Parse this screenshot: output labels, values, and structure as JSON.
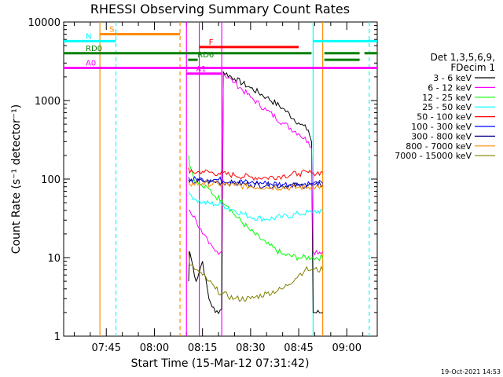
{
  "chart_data": {
    "type": "line",
    "title": "RHESSI Observing Summary Count Rates",
    "xlabel": "Start Time (15-Mar-12 07:31:42)",
    "ylabel": "Count Rate (s⁻¹ detector⁻¹)",
    "yscale": "log",
    "ylim": [
      1,
      10000
    ],
    "xlim": [
      "07:31:42",
      "09:09:30"
    ],
    "x_ticks": [
      "07:45",
      "08:00",
      "08:15",
      "08:30",
      "08:45",
      "09:00"
    ],
    "y_ticks": [
      "1",
      "10",
      "100",
      "1000",
      "10000"
    ],
    "timestamp": "19-Oct-2021 14:53",
    "legend": {
      "header": [
        "Det 1,3,5,6,9,",
        "FDecim 1"
      ],
      "position": "right"
    },
    "series": [
      {
        "name": "3 - 6 keV",
        "color": "#000000",
        "points": [
          [
            "08:10:40",
            5
          ],
          [
            "08:11:00",
            12
          ],
          [
            "08:13:00",
            5
          ],
          [
            "08:15:00",
            9
          ],
          [
            "08:17:00",
            3
          ],
          [
            "08:19:00",
            2
          ],
          [
            "08:21:00",
            2.2
          ],
          [
            "08:21:30",
            2300
          ],
          [
            "08:25:00",
            1900
          ],
          [
            "08:30:00",
            1450
          ],
          [
            "08:35:00",
            1100
          ],
          [
            "08:40:00",
            800
          ],
          [
            "08:45:00",
            520
          ],
          [
            "08:48:00",
            420
          ],
          [
            "08:49:00",
            300
          ],
          [
            "08:49:30",
            2
          ],
          [
            "08:52:30",
            2
          ]
        ]
      },
      {
        "name": "6 - 12 keV",
        "color": "#ff00ff",
        "points": [
          [
            "08:10:40",
            40
          ],
          [
            "08:11:00",
            40
          ],
          [
            "08:13:00",
            30
          ],
          [
            "08:15:00",
            20
          ],
          [
            "08:17:00",
            15
          ],
          [
            "08:19:00",
            12
          ],
          [
            "08:21:00",
            12
          ],
          [
            "08:21:30",
            2200
          ],
          [
            "08:25:00",
            1700
          ],
          [
            "08:30:00",
            1100
          ],
          [
            "08:35:00",
            750
          ],
          [
            "08:40:00",
            520
          ],
          [
            "08:45:00",
            380
          ],
          [
            "08:48:00",
            300
          ],
          [
            "08:49:00",
            250
          ],
          [
            "08:49:30",
            12
          ],
          [
            "08:52:30",
            12
          ]
        ]
      },
      {
        "name": "12 - 25 keV",
        "color": "#00ff00",
        "points": [
          [
            "08:10:40",
            200
          ],
          [
            "08:11:00",
            150
          ],
          [
            "08:13:00",
            90
          ],
          [
            "08:15:00",
            80
          ],
          [
            "08:17:00",
            75
          ],
          [
            "08:19:00",
            60
          ],
          [
            "08:21:00",
            55
          ],
          [
            "08:23:00",
            45
          ],
          [
            "08:25:00",
            35
          ],
          [
            "08:30:00",
            22
          ],
          [
            "08:35:00",
            15
          ],
          [
            "08:40:00",
            11
          ],
          [
            "08:45:00",
            10
          ],
          [
            "08:49:00",
            10
          ],
          [
            "08:49:30",
            10
          ],
          [
            "08:52:30",
            10
          ]
        ]
      },
      {
        "name": "25 - 50 keV",
        "color": "#00ffff",
        "points": [
          [
            "08:10:40",
            70
          ],
          [
            "08:11:00",
            65
          ],
          [
            "08:13:00",
            55
          ],
          [
            "08:15:00",
            50
          ],
          [
            "08:19:00",
            48
          ],
          [
            "08:21:00",
            47
          ],
          [
            "08:25:00",
            40
          ],
          [
            "08:30:00",
            33
          ],
          [
            "08:35:00",
            31
          ],
          [
            "08:40:00",
            33
          ],
          [
            "08:45:00",
            36
          ],
          [
            "08:49:00",
            38
          ],
          [
            "08:49:30",
            38
          ],
          [
            "08:52:30",
            40
          ]
        ]
      },
      {
        "name": "50 - 100 keV",
        "color": "#ff0000",
        "points": [
          [
            "08:10:40",
            140
          ],
          [
            "08:11:00",
            120
          ],
          [
            "08:15:00",
            125
          ],
          [
            "08:20:00",
            118
          ],
          [
            "08:25:00",
            112
          ],
          [
            "08:30:00",
            106
          ],
          [
            "08:35:00",
            104
          ],
          [
            "08:40:00",
            110
          ],
          [
            "08:45:00",
            118
          ],
          [
            "08:49:00",
            120
          ],
          [
            "08:49:30",
            120
          ],
          [
            "08:52:30",
            122
          ]
        ]
      },
      {
        "name": "100 - 300 keV",
        "color": "#0000ff",
        "points": [
          [
            "08:10:40",
            105
          ],
          [
            "08:11:00",
            98
          ],
          [
            "08:15:00",
            100
          ],
          [
            "08:20:00",
            98
          ],
          [
            "08:25:00",
            94
          ],
          [
            "08:30:00",
            90
          ],
          [
            "08:35:00",
            88
          ],
          [
            "08:40:00",
            86
          ],
          [
            "08:45:00",
            86
          ],
          [
            "08:49:00",
            88
          ],
          [
            "08:49:30",
            88
          ],
          [
            "08:52:30",
            88
          ]
        ]
      },
      {
        "name": "300 - 800 keV",
        "color": "#000080",
        "points": [
          [
            "08:10:40",
            98
          ],
          [
            "08:11:00",
            92
          ],
          [
            "08:15:00",
            94
          ],
          [
            "08:20:00",
            92
          ],
          [
            "08:25:00",
            88
          ],
          [
            "08:30:00",
            85
          ],
          [
            "08:35:00",
            84
          ],
          [
            "08:40:00",
            82
          ],
          [
            "08:45:00",
            83
          ],
          [
            "08:49:00",
            84
          ],
          [
            "08:49:30",
            84
          ],
          [
            "08:52:30",
            84
          ]
        ]
      },
      {
        "name": "800 - 7000 keV",
        "color": "#ff8c00",
        "points": [
          [
            "08:10:40",
            92
          ],
          [
            "08:11:00",
            86
          ],
          [
            "08:15:00",
            88
          ],
          [
            "08:20:00",
            86
          ],
          [
            "08:25:00",
            83
          ],
          [
            "08:30:00",
            80
          ],
          [
            "08:35:00",
            79
          ],
          [
            "08:40:00",
            78
          ],
          [
            "08:45:00",
            78
          ],
          [
            "08:49:00",
            80
          ],
          [
            "08:49:30",
            80
          ],
          [
            "08:52:30",
            80
          ]
        ]
      },
      {
        "name": "7000 - 15000 keV",
        "color": "#808000",
        "points": [
          [
            "08:10:40",
            12
          ],
          [
            "08:11:00",
            8
          ],
          [
            "08:13:00",
            7
          ],
          [
            "08:15:00",
            6
          ],
          [
            "08:17:00",
            5
          ],
          [
            "08:19:00",
            4
          ],
          [
            "08:21:00",
            3.5
          ],
          [
            "08:25:00",
            3
          ],
          [
            "08:30:00",
            3
          ],
          [
            "08:35:00",
            3.5
          ],
          [
            "08:40:00",
            4
          ],
          [
            "08:45:00",
            6
          ],
          [
            "08:47:00",
            7
          ],
          [
            "08:49:00",
            7
          ],
          [
            "08:49:30",
            7
          ],
          [
            "08:52:30",
            7
          ]
        ]
      }
    ],
    "flag_lines": [
      {
        "label": "S",
        "color": "#ff8c00",
        "y": 7000,
        "segments": [
          [
            "07:43:00",
            "08:08:00"
          ]
        ]
      },
      {
        "label": "N",
        "color": "#00ffff",
        "y": 5700,
        "segments": [
          [
            "07:31:42",
            "07:48:00"
          ],
          [
            "08:49:30",
            "09:09:30"
          ]
        ]
      },
      {
        "label": "F",
        "color": "#ff0000",
        "y": 4800,
        "segments": [
          [
            "08:14:00",
            "08:45:00"
          ]
        ]
      },
      {
        "label": "RD0",
        "color": "#008000",
        "y": 4000,
        "segments": [
          [
            "07:31:42",
            "08:49:00"
          ],
          [
            "08:53:00",
            "09:04:00"
          ],
          [
            "09:05:30",
            "09:09:30"
          ]
        ]
      },
      {
        "label": "RD6",
        "color": "#008000",
        "y": 3300,
        "segments": [
          [
            "08:10:30",
            "08:13:30"
          ],
          [
            "08:53:00",
            "09:04:00"
          ]
        ]
      },
      {
        "label": "A0",
        "color": "#ff00ff",
        "y": 2600,
        "segments": [
          [
            "07:31:42",
            "09:09:30"
          ]
        ]
      },
      {
        "label": "A1",
        "color": "#ff00ff",
        "y": 2200,
        "segments": [
          [
            "08:10:00",
            "08:21:00"
          ]
        ]
      }
    ],
    "vertical_markers": [
      {
        "time": "07:43:00",
        "color": "#ff8c00",
        "style": "solid"
      },
      {
        "time": "07:48:00",
        "color": "#00ffff",
        "style": "dashed"
      },
      {
        "time": "08:08:00",
        "color": "#ff8c00",
        "style": "dashed"
      },
      {
        "time": "08:10:00",
        "color": "#ff00ff",
        "style": "solid"
      },
      {
        "time": "08:14:00",
        "color": "#ff00ff",
        "style": "solid"
      },
      {
        "time": "08:21:00",
        "color": "#ff00ff",
        "style": "solid"
      },
      {
        "time": "08:49:30",
        "color": "#00ffff",
        "style": "solid"
      },
      {
        "time": "08:52:30",
        "color": "#ff8c00",
        "style": "solid"
      },
      {
        "time": "09:07:00",
        "color": "#00ffff",
        "style": "dashed"
      }
    ]
  }
}
